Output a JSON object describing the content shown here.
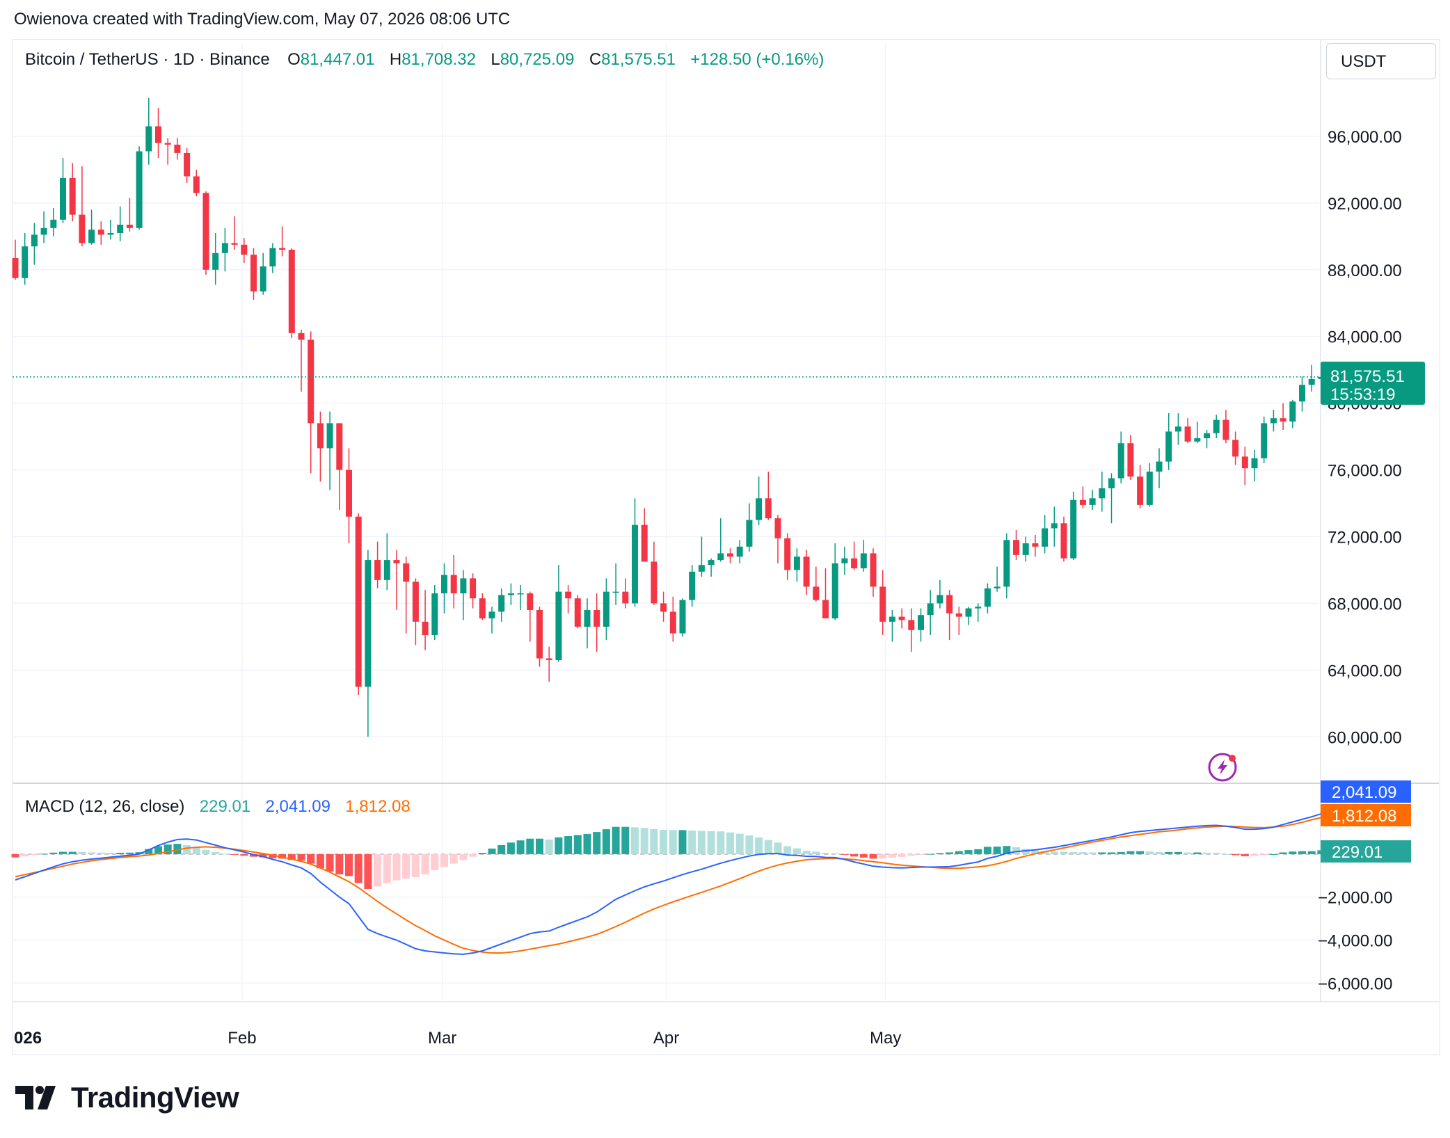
{
  "header": {
    "credit": "Owienova created with TradingView.com, May 07, 2026 08:06 UTC"
  },
  "legend": {
    "symbol": "Bitcoin / TetherUS · 1D · Binance",
    "o_label": "O",
    "open": "81,447.01",
    "h_label": "H",
    "high": "81,708.32",
    "l_label": "L",
    "low": "80,725.09",
    "c_label": "C",
    "close": "81,575.51",
    "change": "+128.50 (+0.16%)"
  },
  "currency": "USDT",
  "price_tag": {
    "price": "81,575.51",
    "countdown": "15:53:19"
  },
  "macd_legend": {
    "title": "MACD (12, 26, close)",
    "hist": "229.01",
    "macd": "2,041.09",
    "signal": "1,812.08"
  },
  "branding": {
    "name": "TradingView"
  },
  "colors": {
    "up": "#089981",
    "down": "#f23645",
    "macd": "#2962ff",
    "signal": "#ff6d00",
    "hist_up_strong": "#26a69a",
    "hist_up_weak": "#b2dfdb",
    "hist_down_strong": "#ff5252",
    "hist_down_weak": "#ffcdd2"
  },
  "chart_data": {
    "type": "candlestick",
    "timeframe": "1D",
    "x_ticks": [
      "026",
      "Feb",
      "Mar",
      "Apr",
      "May"
    ],
    "y_ticks": [
      "60,000.00",
      "64,000.00",
      "68,000.00",
      "72,000.00",
      "76,000.00",
      "80,000.00",
      "84,000.00",
      "88,000.00",
      "92,000.00",
      "96,000.00"
    ],
    "ylim": [
      57300,
      99500
    ],
    "last_price": 81575.51,
    "ohlc": [
      [
        88700,
        89800,
        87400,
        87500
      ],
      [
        87500,
        90200,
        87100,
        89400
      ],
      [
        89400,
        90800,
        88300,
        90100
      ],
      [
        90100,
        91500,
        89600,
        90500
      ],
      [
        90500,
        91700,
        90000,
        91000
      ],
      [
        91000,
        94700,
        90800,
        93500
      ],
      [
        93500,
        94400,
        90900,
        91300
      ],
      [
        91300,
        94200,
        89400,
        89600
      ],
      [
        89600,
        91600,
        89500,
        90400
      ],
      [
        90400,
        90900,
        89500,
        90100
      ],
      [
        90100,
        91000,
        89800,
        90200
      ],
      [
        90200,
        91800,
        89700,
        90700
      ],
      [
        90700,
        92300,
        90300,
        90500
      ],
      [
        90500,
        95400,
        90400,
        95100
      ],
      [
        95100,
        98300,
        94300,
        96600
      ],
      [
        96600,
        97700,
        94700,
        95600
      ],
      [
        95600,
        95900,
        94300,
        95500
      ],
      [
        95500,
        95900,
        94600,
        95000
      ],
      [
        95000,
        95300,
        93200,
        93600
      ],
      [
        93600,
        94000,
        92400,
        92600
      ],
      [
        92600,
        92700,
        87700,
        88000
      ],
      [
        88000,
        90200,
        87100,
        89000
      ],
      [
        89000,
        90500,
        87900,
        89600
      ],
      [
        89600,
        91200,
        89200,
        89500
      ],
      [
        89500,
        89900,
        88400,
        88900
      ],
      [
        88900,
        89300,
        86200,
        86700
      ],
      [
        86700,
        89000,
        86500,
        88200
      ],
      [
        88200,
        89600,
        87800,
        89300
      ],
      [
        89300,
        90600,
        88800,
        89200
      ],
      [
        89200,
        89300,
        83900,
        84200
      ],
      [
        84200,
        84400,
        80700,
        83800
      ],
      [
        83800,
        84300,
        75800,
        78800
      ],
      [
        78800,
        79500,
        75300,
        77300
      ],
      [
        77300,
        79500,
        74800,
        78800
      ],
      [
        78800,
        78800,
        73600,
        76000
      ],
      [
        76000,
        77300,
        71600,
        73200
      ],
      [
        73200,
        73400,
        62500,
        63000
      ],
      [
        63000,
        71200,
        60000,
        70600
      ],
      [
        70600,
        71700,
        68900,
        69400
      ],
      [
        69400,
        72200,
        68800,
        70600
      ],
      [
        70600,
        71200,
        67600,
        70400
      ],
      [
        70400,
        70800,
        66200,
        69300
      ],
      [
        69300,
        69500,
        65500,
        66900
      ],
      [
        66900,
        68800,
        65200,
        66100
      ],
      [
        66100,
        69100,
        65800,
        68600
      ],
      [
        68600,
        70400,
        67400,
        69700
      ],
      [
        69700,
        70900,
        67700,
        68600
      ],
      [
        68600,
        70000,
        67000,
        69500
      ],
      [
        69500,
        69800,
        67700,
        68300
      ],
      [
        68300,
        68600,
        67000,
        67100
      ],
      [
        67100,
        67800,
        66200,
        67500
      ],
      [
        67500,
        68900,
        66900,
        68500
      ],
      [
        68500,
        69200,
        67900,
        68600
      ],
      [
        68600,
        69100,
        67600,
        68600
      ],
      [
        68600,
        68700,
        65700,
        67600
      ],
      [
        67600,
        67800,
        64200,
        64700
      ],
      [
        64700,
        65400,
        63300,
        64600
      ],
      [
        64600,
        70300,
        64500,
        68700
      ],
      [
        68700,
        69100,
        67400,
        68300
      ],
      [
        68300,
        68500,
        66500,
        66600
      ],
      [
        66600,
        68300,
        65300,
        67600
      ],
      [
        67600,
        68600,
        65100,
        66600
      ],
      [
        66600,
        69500,
        65800,
        68700
      ],
      [
        68700,
        70400,
        67900,
        68700
      ],
      [
        68700,
        69500,
        67700,
        68000
      ],
      [
        68000,
        74300,
        67800,
        72700
      ],
      [
        72700,
        73700,
        70700,
        70500
      ],
      [
        70500,
        71700,
        67900,
        68000
      ],
      [
        68000,
        68700,
        66900,
        67500
      ],
      [
        67500,
        68400,
        65700,
        66200
      ],
      [
        66200,
        68300,
        66000,
        68200
      ],
      [
        68200,
        70300,
        67800,
        69900
      ],
      [
        69900,
        72000,
        69600,
        70300
      ],
      [
        70300,
        70700,
        69600,
        70600
      ],
      [
        70600,
        73100,
        70500,
        71000
      ],
      [
        71000,
        71300,
        70400,
        70800
      ],
      [
        70800,
        71800,
        70400,
        71400
      ],
      [
        71400,
        74000,
        71100,
        73000
      ],
      [
        73000,
        75600,
        72700,
        74300
      ],
      [
        74300,
        75900,
        73000,
        73100
      ],
      [
        73100,
        73300,
        70400,
        71900
      ],
      [
        71900,
        72200,
        69400,
        70000
      ],
      [
        70000,
        71300,
        69300,
        70800
      ],
      [
        70800,
        71200,
        68500,
        69000
      ],
      [
        69000,
        70200,
        68100,
        68200
      ],
      [
        68200,
        70100,
        67100,
        67100
      ],
      [
        67100,
        71600,
        67000,
        70400
      ],
      [
        70400,
        71400,
        69700,
        70700
      ],
      [
        70700,
        71700,
        70000,
        70100
      ],
      [
        70100,
        71800,
        69900,
        71000
      ],
      [
        71000,
        71300,
        68400,
        69000
      ],
      [
        69000,
        70000,
        66100,
        66900
      ],
      [
        66900,
        67600,
        65700,
        67200
      ],
      [
        67200,
        67700,
        66500,
        67000
      ],
      [
        67000,
        67700,
        65100,
        66400
      ],
      [
        66400,
        67700,
        65700,
        67300
      ],
      [
        67300,
        68800,
        66100,
        68000
      ],
      [
        68000,
        69400,
        67700,
        68500
      ],
      [
        68500,
        68800,
        65800,
        67400
      ],
      [
        67400,
        67800,
        66100,
        67200
      ],
      [
        67200,
        67800,
        66700,
        67700
      ],
      [
        67700,
        68000,
        66900,
        67800
      ],
      [
        67800,
        69200,
        67400,
        68900
      ],
      [
        68900,
        70200,
        68700,
        69000
      ],
      [
        69000,
        72200,
        68300,
        71800
      ],
      [
        71800,
        72400,
        70600,
        70900
      ],
      [
        70900,
        72000,
        70500,
        71600
      ],
      [
        71600,
        72100,
        70800,
        71400
      ],
      [
        71400,
        73300,
        71000,
        72500
      ],
      [
        72500,
        73800,
        71400,
        72800
      ],
      [
        72800,
        73200,
        70500,
        70700
      ],
      [
        70700,
        74700,
        70600,
        74200
      ],
      [
        74200,
        75000,
        73700,
        73900
      ],
      [
        73900,
        74800,
        73600,
        74300
      ],
      [
        74300,
        75900,
        73500,
        74900
      ],
      [
        74900,
        75800,
        72800,
        75500
      ],
      [
        75500,
        78300,
        75200,
        77600
      ],
      [
        77600,
        78100,
        75400,
        75600
      ],
      [
        75600,
        76300,
        73700,
        73900
      ],
      [
        73900,
        76400,
        73800,
        75900
      ],
      [
        75900,
        77300,
        74900,
        76500
      ],
      [
        76500,
        79400,
        76000,
        78300
      ],
      [
        78300,
        79400,
        77500,
        78600
      ],
      [
        78600,
        79100,
        77600,
        77700
      ],
      [
        77700,
        78900,
        77600,
        77900
      ],
      [
        77900,
        78400,
        77300,
        78200
      ],
      [
        78200,
        79300,
        77900,
        79000
      ],
      [
        79000,
        79600,
        77600,
        77800
      ],
      [
        77800,
        78300,
        76300,
        76800
      ],
      [
        76800,
        77400,
        75100,
        76100
      ],
      [
        76100,
        77200,
        75300,
        76700
      ],
      [
        76700,
        79200,
        76400,
        78800
      ],
      [
        78800,
        79600,
        78300,
        79100
      ],
      [
        79100,
        80000,
        78400,
        78900
      ],
      [
        78900,
        80200,
        78500,
        80100
      ],
      [
        80100,
        81600,
        79500,
        81100
      ],
      [
        81100,
        82300,
        80700,
        81450
      ],
      [
        81447,
        81708,
        80725,
        81576
      ]
    ],
    "macd": [
      -1200,
      -1050,
      -900,
      -740,
      -590,
      -450,
      -350,
      -280,
      -230,
      -185,
      -140,
      -95,
      -50,
      5,
      200,
      400,
      560,
      680,
      700,
      660,
      540,
      420,
      300,
      200,
      100,
      -20,
      -120,
      -240,
      -350,
      -500,
      -640,
      -900,
      -1300,
      -1650,
      -2000,
      -2300,
      -2900,
      -3500,
      -3700,
      -3850,
      -4000,
      -4200,
      -4400,
      -4500,
      -4550,
      -4600,
      -4640,
      -4660,
      -4600,
      -4500,
      -4340,
      -4180,
      -4020,
      -3860,
      -3700,
      -3620,
      -3580,
      -3400,
      -3240,
      -3080,
      -2920,
      -2700,
      -2400,
      -2100,
      -1900,
      -1700,
      -1520,
      -1380,
      -1250,
      -1100,
      -950,
      -820,
      -700,
      -560,
      -420,
      -300,
      -190,
      -90,
      -10,
      20,
      30,
      -40,
      -60,
      -100,
      -110,
      -150,
      -160,
      -240,
      -360,
      -460,
      -560,
      -600,
      -630,
      -640,
      -620,
      -600,
      -600,
      -590,
      -580,
      -520,
      -440,
      -360,
      -200,
      -100,
      40,
      120,
      160,
      200,
      260,
      320,
      400,
      480,
      560,
      640,
      720,
      800,
      900,
      1000,
      1060,
      1100,
      1140,
      1180,
      1220,
      1260,
      1300,
      1330,
      1340,
      1300,
      1240,
      1160,
      1160,
      1190,
      1260,
      1380,
      1500,
      1620,
      1740,
      1880,
      2000,
      2041
    ],
    "signal": [
      -1050,
      -950,
      -860,
      -760,
      -660,
      -560,
      -460,
      -380,
      -310,
      -255,
      -205,
      -160,
      -120,
      -85,
      -40,
      30,
      110,
      200,
      280,
      320,
      340,
      320,
      280,
      230,
      170,
      100,
      30,
      -50,
      -140,
      -230,
      -340,
      -460,
      -640,
      -840,
      -1060,
      -1280,
      -1560,
      -1880,
      -2200,
      -2500,
      -2780,
      -3060,
      -3330,
      -3560,
      -3800,
      -4000,
      -4200,
      -4380,
      -4480,
      -4560,
      -4600,
      -4600,
      -4560,
      -4500,
      -4420,
      -4340,
      -4260,
      -4180,
      -4080,
      -3970,
      -3860,
      -3730,
      -3560,
      -3370,
      -3170,
      -2950,
      -2740,
      -2550,
      -2380,
      -2220,
      -2070,
      -1920,
      -1780,
      -1630,
      -1480,
      -1310,
      -1140,
      -960,
      -790,
      -640,
      -510,
      -410,
      -330,
      -260,
      -230,
      -210,
      -200,
      -220,
      -250,
      -300,
      -350,
      -400,
      -460,
      -510,
      -550,
      -580,
      -610,
      -640,
      -660,
      -660,
      -630,
      -590,
      -540,
      -450,
      -340,
      -200,
      -90,
      20,
      110,
      200,
      290,
      380,
      470,
      560,
      640,
      720,
      800,
      860,
      920,
      980,
      1040,
      1080,
      1120,
      1180,
      1220,
      1260,
      1280,
      1300,
      1290,
      1260,
      1240,
      1230,
      1260,
      1300,
      1380,
      1480,
      1600,
      1700,
      1812
    ]
  }
}
